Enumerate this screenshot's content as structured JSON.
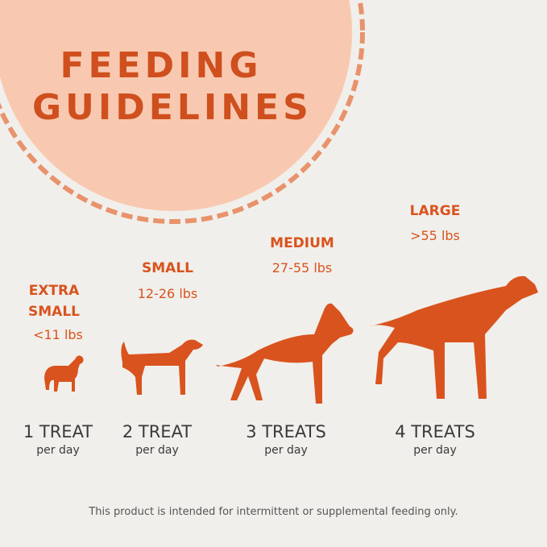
{
  "header": {
    "title_lines": [
      "FEEDING",
      "GUIDELINES"
    ]
  },
  "sizes": [
    {
      "name": "EXTRA SMALL",
      "weight": "<11 lbs",
      "amount": "1 TREAT",
      "frequency": "per day"
    },
    {
      "name": "SMALL",
      "weight": "12-26 lbs",
      "amount": "2 TREAT",
      "frequency": "per day"
    },
    {
      "name": "MEDIUM",
      "weight": "27-55 lbs",
      "amount": "3 TREATS",
      "frequency": "per day"
    },
    {
      "name": "LARGE",
      "weight": ">55 lbs",
      "amount": "4 TREATS",
      "frequency": "per day"
    }
  ],
  "footer": {
    "note": "This product is intended for intermittent or supplemental feeding only."
  }
}
